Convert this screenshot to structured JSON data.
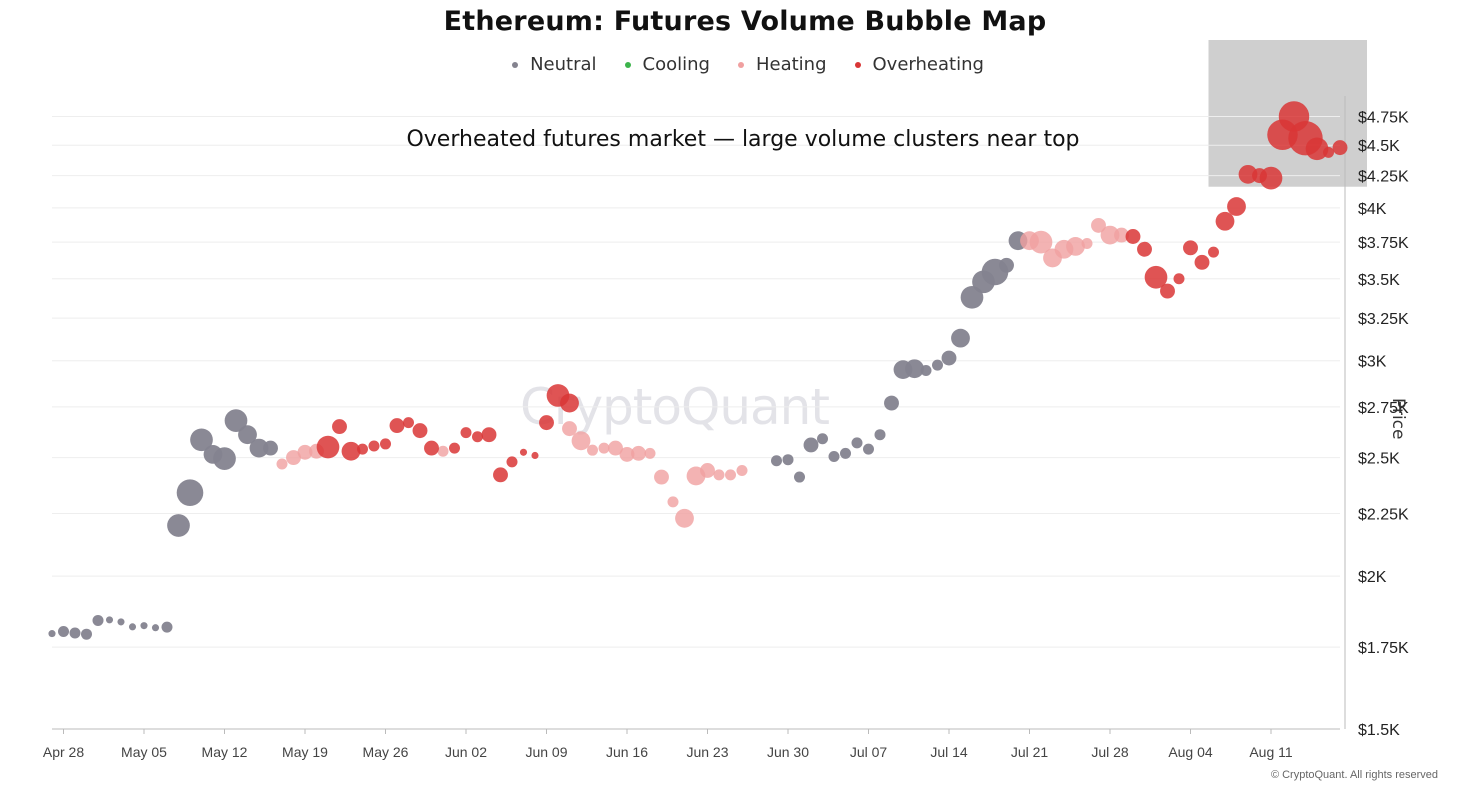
{
  "title": "Ethereum: Futures Volume Bubble Map",
  "annotation": "Overheated futures market — large volume clusters near top",
  "watermark": "CryptoQuant",
  "copyright": "© CryptoQuant. All rights reserved",
  "legend": [
    {
      "label": "Neutral",
      "color": "#84838f"
    },
    {
      "label": "Cooling",
      "color": "#3cb44b"
    },
    {
      "label": "Heating",
      "color": "#f0a0a0"
    },
    {
      "label": "Overheating",
      "color": "#d93636"
    }
  ],
  "colors": {
    "neutral": "#84838f",
    "cooling": "#3cb44b",
    "heating": "#f0a0a0",
    "overheating": "#d93636",
    "highlight": "#cccccc",
    "grid": "#eeeeee",
    "axis": "#bbbbbb"
  },
  "chart_data": {
    "type": "scatter",
    "title": "Ethereum: Futures Volume Bubble Map",
    "ylabel": "Price",
    "xlabel": "",
    "y_scale": "log",
    "ylim": [
      1500,
      4900
    ],
    "xlim": [
      "2025-04-27",
      "2025-08-17"
    ],
    "legend_position": "top",
    "grid": true,
    "x_tick_labels": [
      "Apr 28",
      "May 05",
      "May 12",
      "May 19",
      "May 26",
      "Jun 02",
      "Jun 09",
      "Jun 16",
      "Jun 23",
      "Jun 30",
      "Jul 07",
      "Jul 14",
      "Jul 21",
      "Jul 28",
      "Aug 04",
      "Aug 11"
    ],
    "x_tick_dates": [
      "2025-04-28",
      "2025-05-05",
      "2025-05-12",
      "2025-05-19",
      "2025-05-26",
      "2025-06-02",
      "2025-06-09",
      "2025-06-16",
      "2025-06-23",
      "2025-06-30",
      "2025-07-07",
      "2025-07-14",
      "2025-07-21",
      "2025-07-28",
      "2025-08-04",
      "2025-08-11"
    ],
    "y_ticks": [
      1500,
      1750,
      2000,
      2250,
      2500,
      2750,
      3000,
      3250,
      3500,
      3750,
      4000,
      4250,
      4500,
      4750
    ],
    "y_tick_labels": [
      "$1.5K",
      "$1.75K",
      "$2K",
      "$2.25K",
      "$2.5K",
      "$2.75K",
      "$3K",
      "$3.25K",
      "$3.5K",
      "$3.75K",
      "$4K",
      "$4.25K",
      "$4.5K",
      "$4.75K"
    ],
    "highlight_region": {
      "x": [
        "2025-08-08",
        "2025-08-17"
      ],
      "y": [
        4170,
        4900
      ]
    },
    "series": [
      {
        "name": "Neutral",
        "points": [
          {
            "x": "2025-04-27",
            "y": 1795,
            "size": 1
          },
          {
            "x": "2025-04-28",
            "y": 1802,
            "size": 2
          },
          {
            "x": "2025-04-29",
            "y": 1797,
            "size": 2
          },
          {
            "x": "2025-04-30",
            "y": 1793,
            "size": 2
          },
          {
            "x": "2025-05-01",
            "y": 1840,
            "size": 2
          },
          {
            "x": "2025-05-02",
            "y": 1842,
            "size": 1
          },
          {
            "x": "2025-05-03",
            "y": 1835,
            "size": 1
          },
          {
            "x": "2025-05-04",
            "y": 1818,
            "size": 1
          },
          {
            "x": "2025-05-05",
            "y": 1822,
            "size": 1
          },
          {
            "x": "2025-05-06",
            "y": 1815,
            "size": 1
          },
          {
            "x": "2025-05-07",
            "y": 1817,
            "size": 2
          },
          {
            "x": "2025-05-08",
            "y": 2200,
            "size": 5
          },
          {
            "x": "2025-05-09",
            "y": 2340,
            "size": 6
          },
          {
            "x": "2025-05-10",
            "y": 2585,
            "size": 5
          },
          {
            "x": "2025-05-11",
            "y": 2515,
            "size": 4
          },
          {
            "x": "2025-05-12",
            "y": 2495,
            "size": 5
          },
          {
            "x": "2025-05-13",
            "y": 2680,
            "size": 5
          },
          {
            "x": "2025-05-14",
            "y": 2610,
            "size": 4
          },
          {
            "x": "2025-05-15",
            "y": 2545,
            "size": 4
          },
          {
            "x": "2025-05-16",
            "y": 2545,
            "size": 3
          },
          {
            "x": "2025-06-29",
            "y": 2485,
            "size": 2
          },
          {
            "x": "2025-06-30",
            "y": 2490,
            "size": 2
          },
          {
            "x": "2025-07-01",
            "y": 2410,
            "size": 2
          },
          {
            "x": "2025-07-02",
            "y": 2560,
            "size": 3
          },
          {
            "x": "2025-07-03",
            "y": 2590,
            "size": 2
          },
          {
            "x": "2025-07-04",
            "y": 2505,
            "size": 2
          },
          {
            "x": "2025-07-05",
            "y": 2520,
            "size": 2
          },
          {
            "x": "2025-07-06",
            "y": 2570,
            "size": 2
          },
          {
            "x": "2025-07-07",
            "y": 2540,
            "size": 2
          },
          {
            "x": "2025-07-08",
            "y": 2610,
            "size": 2
          },
          {
            "x": "2025-07-09",
            "y": 2770,
            "size": 3
          },
          {
            "x": "2025-07-10",
            "y": 2950,
            "size": 4
          },
          {
            "x": "2025-07-11",
            "y": 2955,
            "size": 4
          },
          {
            "x": "2025-07-12",
            "y": 2945,
            "size": 2
          },
          {
            "x": "2025-07-13",
            "y": 2975,
            "size": 2
          },
          {
            "x": "2025-07-14",
            "y": 3015,
            "size": 3
          },
          {
            "x": "2025-07-15",
            "y": 3130,
            "size": 4
          },
          {
            "x": "2025-07-16",
            "y": 3380,
            "size": 5
          },
          {
            "x": "2025-07-17",
            "y": 3480,
            "size": 5
          },
          {
            "x": "2025-07-18",
            "y": 3545,
            "size": 6
          },
          {
            "x": "2025-07-19",
            "y": 3590,
            "size": 3
          },
          {
            "x": "2025-07-20",
            "y": 3760,
            "size": 4
          }
        ]
      },
      {
        "name": "Cooling",
        "points": []
      },
      {
        "name": "Heating",
        "points": [
          {
            "x": "2025-05-17",
            "y": 2470,
            "size": 2
          },
          {
            "x": "2025-05-18",
            "y": 2500,
            "size": 3
          },
          {
            "x": "2025-05-19",
            "y": 2525,
            "size": 3
          },
          {
            "x": "2025-05-20",
            "y": 2530,
            "size": 3
          },
          {
            "x": "2025-05-31",
            "y": 2530,
            "size": 2
          },
          {
            "x": "2025-06-11",
            "y": 2640,
            "size": 3
          },
          {
            "x": "2025-06-12",
            "y": 2580,
            "size": 4
          },
          {
            "x": "2025-06-13",
            "y": 2535,
            "size": 2
          },
          {
            "x": "2025-06-14",
            "y": 2545,
            "size": 2
          },
          {
            "x": "2025-06-15",
            "y": 2545,
            "size": 3
          },
          {
            "x": "2025-06-16",
            "y": 2515,
            "size": 3
          },
          {
            "x": "2025-06-17",
            "y": 2520,
            "size": 3
          },
          {
            "x": "2025-06-18",
            "y": 2520,
            "size": 2
          },
          {
            "x": "2025-06-19",
            "y": 2410,
            "size": 3
          },
          {
            "x": "2025-06-20",
            "y": 2300,
            "size": 2
          },
          {
            "x": "2025-06-21",
            "y": 2230,
            "size": 4
          },
          {
            "x": "2025-06-22",
            "y": 2415,
            "size": 4
          },
          {
            "x": "2025-06-23",
            "y": 2440,
            "size": 3
          },
          {
            "x": "2025-06-24",
            "y": 2420,
            "size": 2
          },
          {
            "x": "2025-06-25",
            "y": 2420,
            "size": 2
          },
          {
            "x": "2025-06-26",
            "y": 2440,
            "size": 2
          },
          {
            "x": "2025-07-21",
            "y": 3760,
            "size": 4
          },
          {
            "x": "2025-07-22",
            "y": 3750,
            "size": 5
          },
          {
            "x": "2025-07-23",
            "y": 3640,
            "size": 4
          },
          {
            "x": "2025-07-24",
            "y": 3700,
            "size": 4
          },
          {
            "x": "2025-07-25",
            "y": 3720,
            "size": 4
          },
          {
            "x": "2025-07-26",
            "y": 3740,
            "size": 2
          },
          {
            "x": "2025-07-27",
            "y": 3870,
            "size": 3
          },
          {
            "x": "2025-07-28",
            "y": 3800,
            "size": 4
          },
          {
            "x": "2025-07-29",
            "y": 3800,
            "size": 3
          }
        ]
      },
      {
        "name": "Overheating",
        "points": [
          {
            "x": "2025-05-21",
            "y": 2550,
            "size": 5
          },
          {
            "x": "2025-05-22",
            "y": 2650,
            "size": 3
          },
          {
            "x": "2025-05-23",
            "y": 2530,
            "size": 4
          },
          {
            "x": "2025-05-24",
            "y": 2540,
            "size": 2
          },
          {
            "x": "2025-05-25",
            "y": 2555,
            "size": 2
          },
          {
            "x": "2025-05-26",
            "y": 2565,
            "size": 2
          },
          {
            "x": "2025-05-27",
            "y": 2655,
            "size": 3
          },
          {
            "x": "2025-05-28",
            "y": 2670,
            "size": 2
          },
          {
            "x": "2025-05-29",
            "y": 2630,
            "size": 3
          },
          {
            "x": "2025-05-30",
            "y": 2545,
            "size": 3
          },
          {
            "x": "2025-06-01",
            "y": 2545,
            "size": 2
          },
          {
            "x": "2025-06-02",
            "y": 2620,
            "size": 2
          },
          {
            "x": "2025-06-03",
            "y": 2600,
            "size": 2
          },
          {
            "x": "2025-06-04",
            "y": 2610,
            "size": 3
          },
          {
            "x": "2025-06-05",
            "y": 2420,
            "size": 3
          },
          {
            "x": "2025-06-06",
            "y": 2480,
            "size": 2
          },
          {
            "x": "2025-06-07",
            "y": 2525,
            "size": 1
          },
          {
            "x": "2025-06-08",
            "y": 2510,
            "size": 1
          },
          {
            "x": "2025-06-09",
            "y": 2670,
            "size": 3
          },
          {
            "x": "2025-06-10",
            "y": 2810,
            "size": 5
          },
          {
            "x": "2025-06-11",
            "y": 2770,
            "size": 4
          },
          {
            "x": "2025-07-30",
            "y": 3790,
            "size": 3
          },
          {
            "x": "2025-07-31",
            "y": 3700,
            "size": 3
          },
          {
            "x": "2025-08-01",
            "y": 3510,
            "size": 5
          },
          {
            "x": "2025-08-02",
            "y": 3420,
            "size": 3
          },
          {
            "x": "2025-08-03",
            "y": 3500,
            "size": 2
          },
          {
            "x": "2025-08-04",
            "y": 3710,
            "size": 3
          },
          {
            "x": "2025-08-05",
            "y": 3610,
            "size": 3
          },
          {
            "x": "2025-08-06",
            "y": 3680,
            "size": 2
          },
          {
            "x": "2025-08-07",
            "y": 3900,
            "size": 4
          },
          {
            "x": "2025-08-08",
            "y": 4010,
            "size": 4
          },
          {
            "x": "2025-08-09",
            "y": 4260,
            "size": 4
          },
          {
            "x": "2025-08-10",
            "y": 4250,
            "size": 3
          },
          {
            "x": "2025-08-11",
            "y": 4230,
            "size": 5
          },
          {
            "x": "2025-08-12",
            "y": 4590,
            "size": 7
          },
          {
            "x": "2025-08-13",
            "y": 4750,
            "size": 7
          },
          {
            "x": "2025-08-14",
            "y": 4560,
            "size": 8
          },
          {
            "x": "2025-08-15",
            "y": 4470,
            "size": 5
          },
          {
            "x": "2025-08-16",
            "y": 4440,
            "size": 2
          },
          {
            "x": "2025-08-17",
            "y": 4480,
            "size": 3
          }
        ]
      }
    ]
  }
}
